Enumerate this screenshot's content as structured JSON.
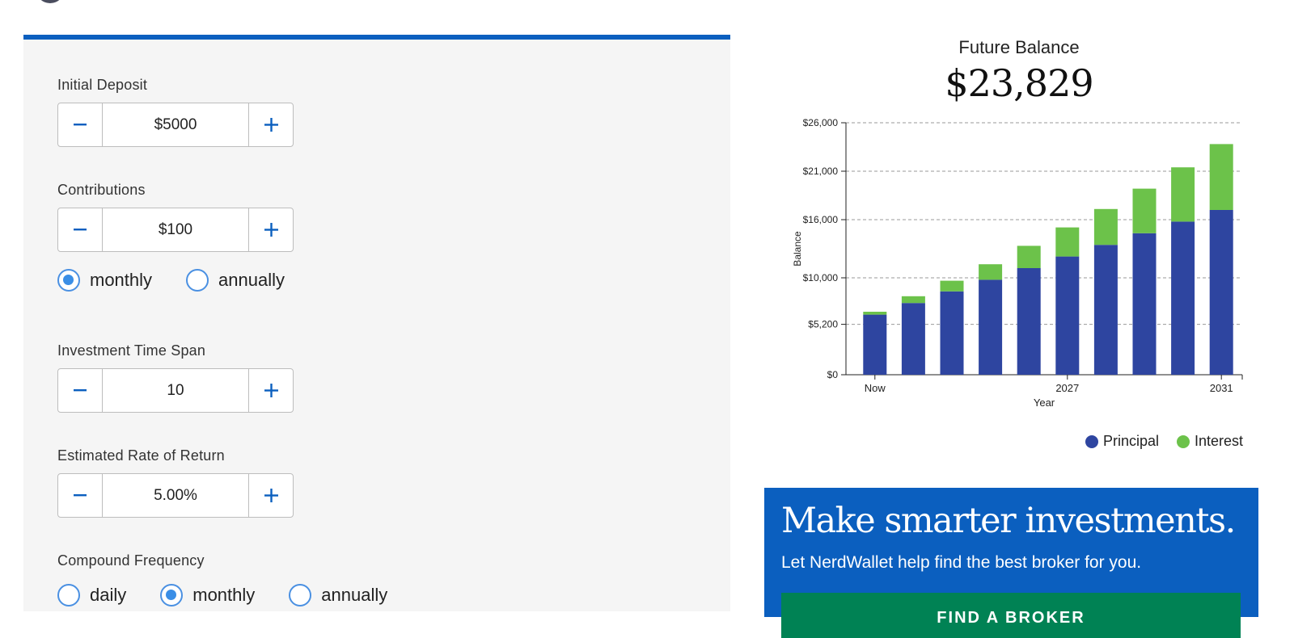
{
  "form": {
    "initial_deposit": {
      "label": "Initial Deposit",
      "value": "$5000"
    },
    "contributions": {
      "label": "Contributions",
      "value": "$100"
    },
    "contribution_frequency": {
      "options": [
        "monthly",
        "annually"
      ],
      "selected": "monthly"
    },
    "time_span": {
      "label": "Investment Time Span",
      "value": "10"
    },
    "rate_of_return": {
      "label": "Estimated Rate of Return",
      "value": "5.00%"
    },
    "compound_frequency": {
      "label": "Compound Frequency",
      "options": [
        "daily",
        "monthly",
        "annually"
      ],
      "selected": "monthly"
    }
  },
  "result": {
    "title": "Future Balance",
    "amount": "$23,829"
  },
  "colors": {
    "principal": "#2e45a0",
    "interest": "#6cc24a",
    "accent": "#0b5fbf",
    "cta": "#008254"
  },
  "chart_data": {
    "type": "bar",
    "stacked": true,
    "xlabel": "Year",
    "ylabel": "Balance",
    "ylim": [
      0,
      26000
    ],
    "y_ticks": [
      "$0",
      "$5,200",
      "$10,000",
      "$16,000",
      "$21,000",
      "$26,000"
    ],
    "y_tick_values": [
      0,
      5200,
      10000,
      16000,
      21000,
      26000
    ],
    "x_tick_labels": [
      {
        "index": 0,
        "label": "Now"
      },
      {
        "index": 5,
        "label": "2027"
      },
      {
        "index": 9,
        "label": "2031"
      }
    ],
    "grid": "horizontal dashed",
    "series": [
      {
        "name": "Principal",
        "values": [
          6200,
          7400,
          8600,
          9800,
          11000,
          12200,
          13400,
          14600,
          15800,
          17000
        ]
      },
      {
        "name": "Interest",
        "values": [
          300,
          700,
          1100,
          1600,
          2300,
          3000,
          3700,
          4600,
          5600,
          6800
        ]
      }
    ],
    "legend": [
      "Principal",
      "Interest"
    ],
    "legend_position": "bottom-right"
  },
  "ad": {
    "headline": "Make smarter investments.",
    "subtext": "Let NerdWallet help find the best broker for you.",
    "cta": "FIND A BROKER"
  }
}
